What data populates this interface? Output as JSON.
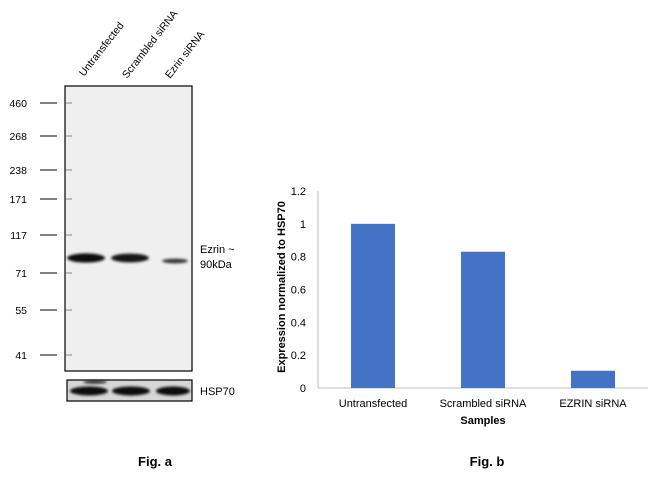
{
  "panel_a": {
    "lanes": [
      "Untransfected",
      "Scrambled siRNA",
      "Ezrin siRNA"
    ],
    "markers": [
      "460",
      "268",
      "238",
      "171",
      "117",
      "71",
      "55",
      "41"
    ],
    "band_label_line1": "Ezrin ~",
    "band_label_line2": "90kDa",
    "control_label": "HSP70",
    "caption": "Fig. a"
  },
  "panel_b": {
    "caption": "Fig. b"
  },
  "chart_data": {
    "type": "bar",
    "categories": [
      "Untransfected",
      "Scrambled siRNA",
      "EZRIN siRNA"
    ],
    "values": [
      1.0,
      0.83,
      0.105
    ],
    "yticks": [
      "0",
      "0.2",
      "0.4",
      "0.6",
      "0.8",
      "1",
      "1.2"
    ],
    "ylim": [
      0,
      1.2
    ],
    "xlabel": "Samples",
    "ylabel": "Expression normalized to HSP70",
    "bar_color": "#4472C4",
    "grid": false
  }
}
